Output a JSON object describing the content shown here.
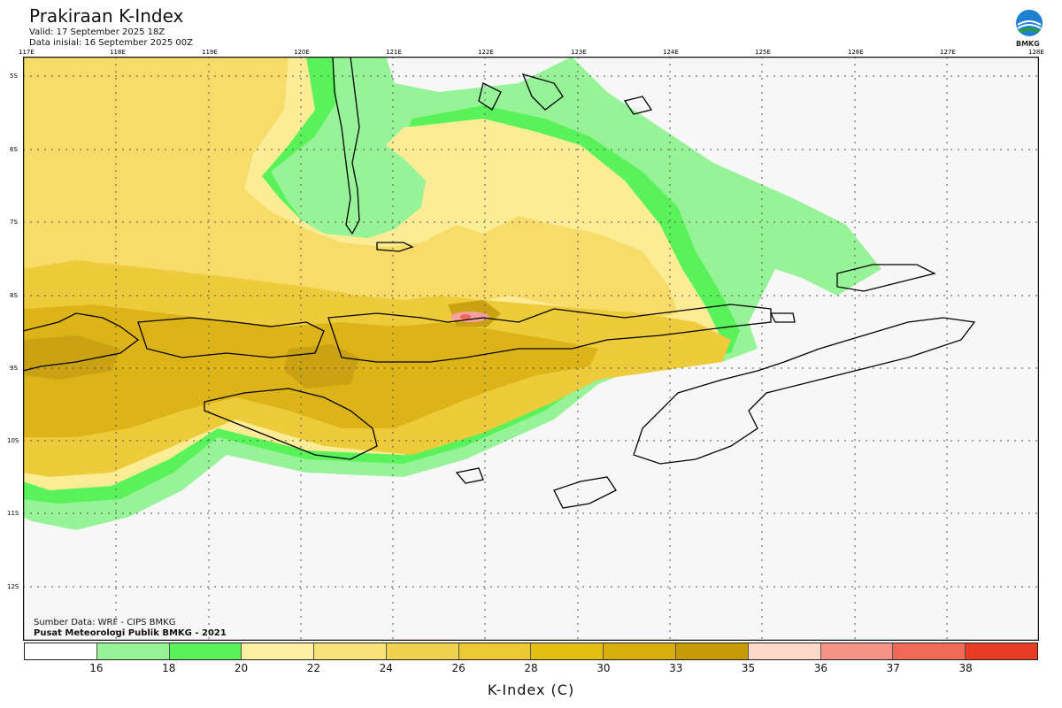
{
  "header": {
    "title": "Prakiraan K-Index",
    "valid": "Valid: 17 September 2025 18Z",
    "init": "Data inisial: 16 September 2025 00Z"
  },
  "logo": {
    "text": "BMKG",
    "icon": "bmkg-logo-icon"
  },
  "map": {
    "lon_labels": [
      "117E",
      "118E",
      "119E",
      "120E",
      "121E",
      "122E",
      "123E",
      "124E",
      "125E",
      "126E",
      "127E",
      "128E"
    ],
    "lat_labels": [
      "5S",
      "6S",
      "7S",
      "8S",
      "9S",
      "10S",
      "11S",
      "12S"
    ],
    "region": "Nusa Tenggara",
    "colors": {
      "background": "#f7f7f7",
      "green_light": "#97f397",
      "green": "#5af25a",
      "yellow_light": "#fcec96",
      "yellow": "#f8dc6a",
      "gold": "#eecb3a",
      "dark_gold": "#dcb418",
      "brown": "#c9a112",
      "pink": "#f6a0a0",
      "coast": "#000000"
    }
  },
  "footer": {
    "source": "Sumber Data: WRF - CIPS BMKG",
    "org": "Pusat Meteorologi Publik BMKG - 2021"
  },
  "colorbar": {
    "colors": [
      "#ffffff",
      "#97f397",
      "#5af25a",
      "#fcf0a0",
      "#f8e27a",
      "#f1d24e",
      "#ecc832",
      "#e3bf16",
      "#d8ae0a",
      "#c59c08",
      "#fddac8",
      "#f7948a",
      "#ef6858",
      "#e83b22"
    ],
    "tick_labels": [
      "16",
      "18",
      "20",
      "22",
      "24",
      "26",
      "28",
      "30",
      "33",
      "35",
      "36",
      "37",
      "38"
    ],
    "title": "K-Index (C)"
  }
}
